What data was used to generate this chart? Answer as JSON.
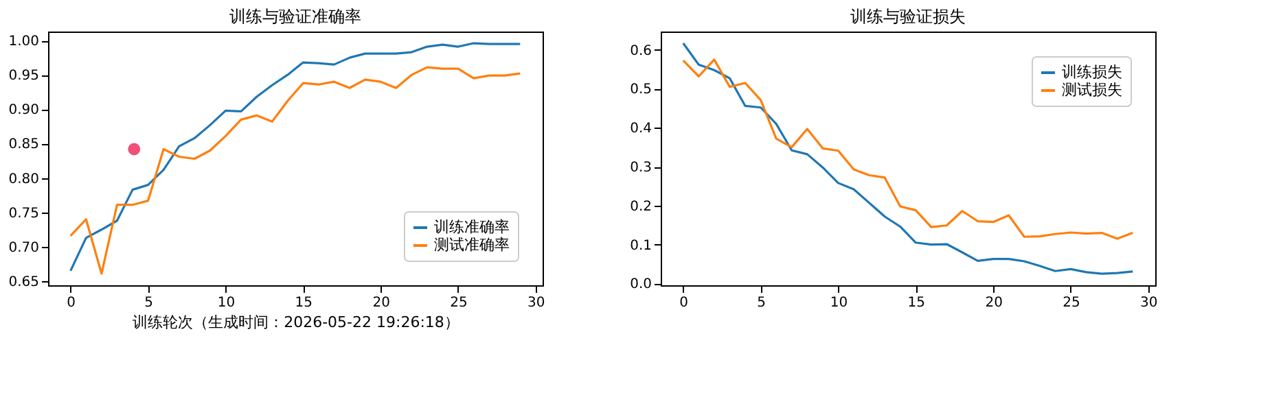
{
  "chart_data": [
    {
      "type": "line",
      "title": "训练与验证准确率",
      "xlabel": "训练轮次（生成时间：2026-05-22 19:26:18）",
      "x": [
        0,
        1,
        2,
        3,
        4,
        5,
        6,
        7,
        8,
        9,
        10,
        11,
        12,
        13,
        14,
        15,
        16,
        17,
        18,
        19,
        20,
        21,
        22,
        23,
        24,
        25,
        26,
        27,
        28,
        29
      ],
      "series": [
        {
          "name": "训练准确率",
          "color": "#1f77b4",
          "values": [
            0.665,
            0.713,
            0.725,
            0.738,
            0.783,
            0.79,
            0.812,
            0.846,
            0.858,
            0.877,
            0.898,
            0.897,
            0.918,
            0.935,
            0.95,
            0.968,
            0.967,
            0.965,
            0.975,
            0.981,
            0.981,
            0.981,
            0.983,
            0.991,
            0.994,
            0.991,
            0.996,
            0.995,
            0.995,
            0.995
          ]
        },
        {
          "name": "测试准确率",
          "color": "#ff7f0e",
          "values": [
            0.716,
            0.74,
            0.661,
            0.761,
            0.761,
            0.767,
            0.842,
            0.831,
            0.828,
            0.84,
            0.861,
            0.885,
            0.891,
            0.882,
            0.912,
            0.938,
            0.936,
            0.94,
            0.931,
            0.943,
            0.94,
            0.931,
            0.95,
            0.961,
            0.959,
            0.959,
            0.945,
            0.949,
            0.949,
            0.952
          ]
        },
        {
          "type": "scatter",
          "color": "#f0507a",
          "x": [
            4.1
          ],
          "values": [
            0.842
          ]
        }
      ],
      "xlim": [
        -1.45,
        30.45
      ],
      "ylim": [
        0.644,
        1.013
      ],
      "xticks": [
        0,
        5,
        10,
        15,
        20,
        25,
        30
      ],
      "yticks": [
        0.65,
        {
          "value": 0.7,
          "label": "0.70"
        },
        0.75,
        {
          "value": 0.8,
          "label": "0.80"
        },
        0.85,
        {
          "value": 0.9,
          "label": "0.90"
        },
        0.95,
        {
          "value": 1.0,
          "label": "1.00"
        }
      ],
      "legend": "bottom right",
      "grid": false,
      "line_style": "solid"
    },
    {
      "type": "line",
      "title": "训练与验证损失",
      "x": [
        0,
        1,
        2,
        3,
        4,
        5,
        6,
        7,
        8,
        9,
        10,
        11,
        12,
        13,
        14,
        15,
        16,
        17,
        18,
        19,
        20,
        21,
        22,
        23,
        24,
        25,
        26,
        27,
        28,
        29
      ],
      "series": [
        {
          "name": "训练损失",
          "color": "#1f77b4",
          "values": [
            0.617,
            0.562,
            0.548,
            0.527,
            0.456,
            0.452,
            0.41,
            0.342,
            0.332,
            0.298,
            0.258,
            0.242,
            0.207,
            0.172,
            0.146,
            0.105,
            0.1,
            0.101,
            0.08,
            0.058,
            0.063,
            0.063,
            0.057,
            0.045,
            0.032,
            0.037,
            0.029,
            0.025,
            0.027,
            0.031
          ]
        },
        {
          "name": "测试损失",
          "color": "#ff7f0e",
          "values": [
            0.573,
            0.532,
            0.575,
            0.505,
            0.515,
            0.471,
            0.372,
            0.35,
            0.397,
            0.347,
            0.341,
            0.293,
            0.278,
            0.272,
            0.198,
            0.188,
            0.145,
            0.149,
            0.186,
            0.16,
            0.158,
            0.175,
            0.12,
            0.121,
            0.127,
            0.131,
            0.128,
            0.13,
            0.115,
            0.13
          ]
        }
      ],
      "xlim": [
        -1.45,
        30.45
      ],
      "ylim": [
        -0.0046,
        0.647
      ],
      "xticks": [
        0,
        5,
        10,
        15,
        20,
        25,
        30
      ],
      "yticks": [
        {
          "value": 0.0,
          "label": "0.0"
        },
        0.1,
        0.2,
        0.3,
        0.4,
        0.5,
        0.6
      ],
      "legend": "top right",
      "grid": false,
      "line_style": "solid"
    }
  ]
}
